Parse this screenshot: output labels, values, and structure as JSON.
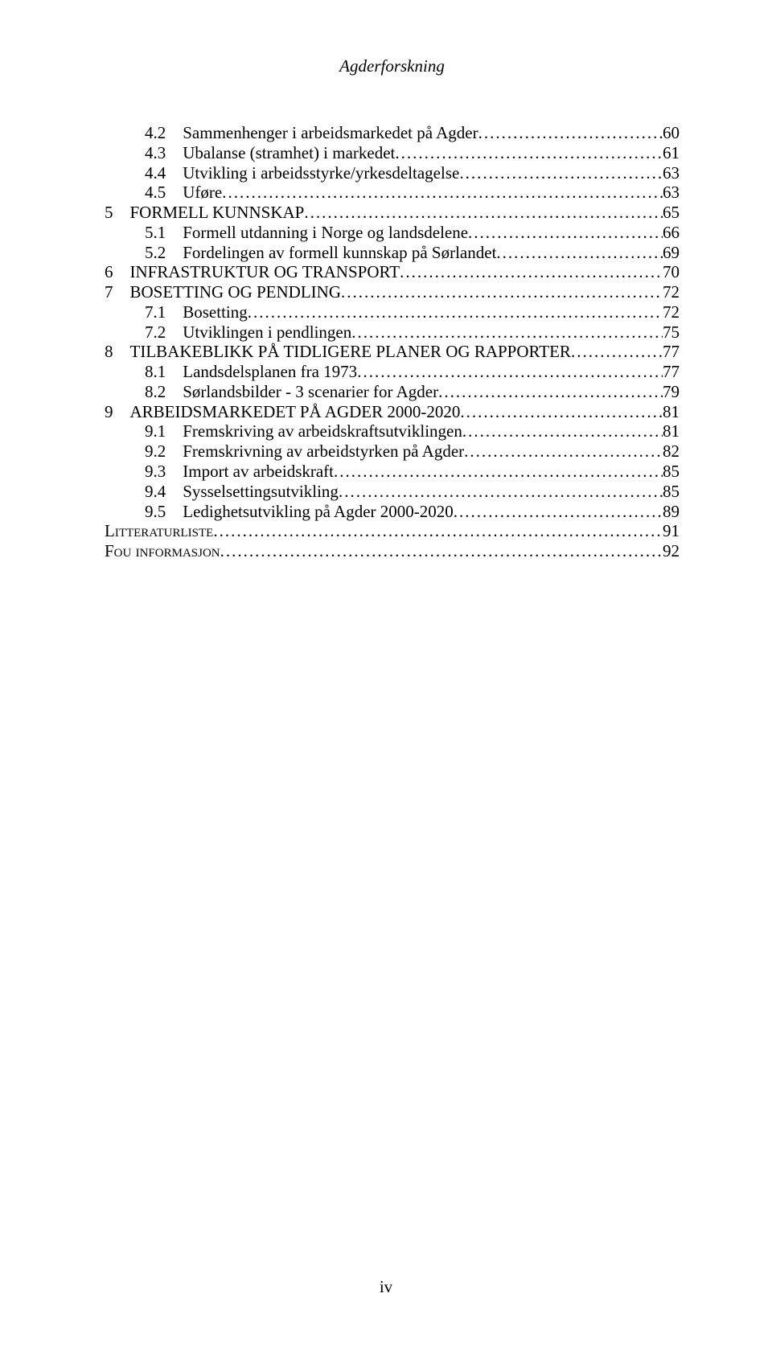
{
  "header": "Agderforskning",
  "pageNumber": "iv",
  "toc": [
    {
      "indent": 1,
      "num": "4.2",
      "text": "Sammenhenger i arbeidsmarkedet på Agder",
      "page": "60",
      "sc": false
    },
    {
      "indent": 1,
      "num": "4.3",
      "text": "Ubalanse (stramhet) i markedet",
      "page": "61",
      "sc": false
    },
    {
      "indent": 1,
      "num": "4.4",
      "text": "Utvikling i arbeidsstyrke/yrkesdeltagelse",
      "page": "63",
      "sc": false
    },
    {
      "indent": 1,
      "num": "4.5",
      "text": "Uføre",
      "page": "63",
      "sc": false
    },
    {
      "indent": 0,
      "num": "5",
      "text": "FORMELL KUNNSKAP",
      "page": "65",
      "sc": false
    },
    {
      "indent": 1,
      "num": "5.1",
      "text": "Formell utdanning i Norge og landsdelene",
      "page": "66",
      "sc": false
    },
    {
      "indent": 1,
      "num": "5.2",
      "text": "Fordelingen av formell kunnskap på Sørlandet",
      "page": "69",
      "sc": false
    },
    {
      "indent": 0,
      "num": "6",
      "text": "INFRASTRUKTUR OG TRANSPORT",
      "page": "70",
      "sc": false
    },
    {
      "indent": 0,
      "num": "7",
      "text": "BOSETTING OG PENDLING",
      "page": "72",
      "sc": false
    },
    {
      "indent": 1,
      "num": "7.1",
      "text": "Bosetting",
      "page": "72",
      "sc": false
    },
    {
      "indent": 1,
      "num": "7.2",
      "text": "Utviklingen i pendlingen",
      "page": "75",
      "sc": false
    },
    {
      "indent": 0,
      "num": "8",
      "text": "TILBAKEBLIKK PÅ TIDLIGERE PLANER OG RAPPORTER",
      "page": "77",
      "sc": false
    },
    {
      "indent": 1,
      "num": "8.1",
      "text": "Landsdelsplanen fra 1973",
      "page": "77",
      "sc": false
    },
    {
      "indent": 1,
      "num": "8.2",
      "text": "Sørlandsbilder - 3 scenarier for Agder",
      "page": "79",
      "sc": false
    },
    {
      "indent": 0,
      "num": "9",
      "text": "ARBEIDSMARKEDET PÅ AGDER 2000-2020",
      "page": "81",
      "sc": false
    },
    {
      "indent": 1,
      "num": "9.1",
      "text": "Fremskriving av arbeidskraftsutviklingen",
      "page": "81",
      "sc": false
    },
    {
      "indent": 1,
      "num": "9.2",
      "text": "Fremskrivning av arbeidstyrken på Agder",
      "page": "82",
      "sc": false
    },
    {
      "indent": 1,
      "num": "9.3",
      "text": "Import av arbeidskraft",
      "page": "85",
      "sc": false
    },
    {
      "indent": 1,
      "num": "9.4",
      "text": "Sysselsettingsutvikling",
      "page": "85",
      "sc": false
    },
    {
      "indent": 1,
      "num": "9.5",
      "text": "Ledighetsutvikling på Agder 2000-2020",
      "page": "89",
      "sc": false
    },
    {
      "indent": 0,
      "num": "",
      "text": "Litteraturliste",
      "page": "91",
      "sc": true
    },
    {
      "indent": 0,
      "num": "",
      "text": "Fou informasjon",
      "page": "92",
      "sc": true
    }
  ]
}
